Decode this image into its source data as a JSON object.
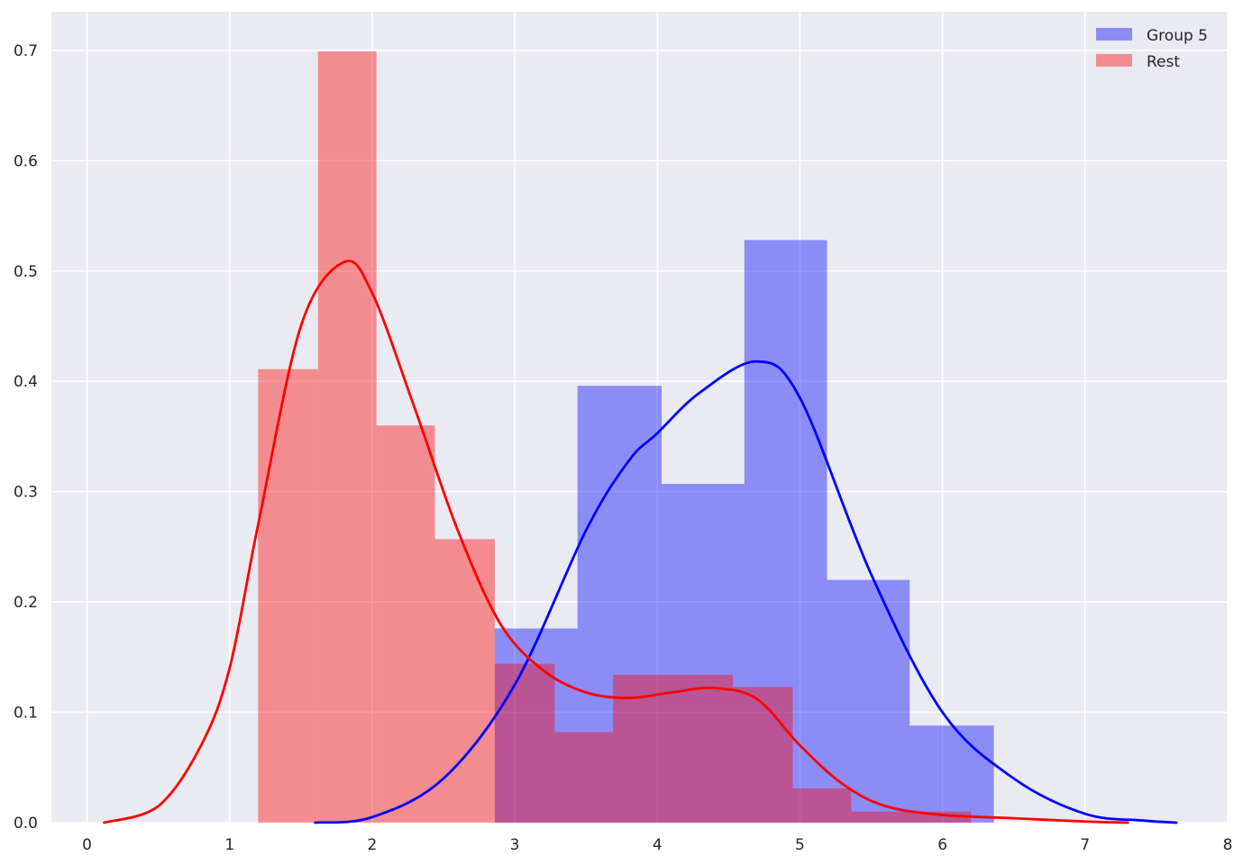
{
  "chart_data": {
    "type": "histogram",
    "xlim": [
      -0.25,
      8.0
    ],
    "ylim": [
      0,
      0.735
    ],
    "xticks": [
      0,
      1,
      2,
      3,
      4,
      5,
      6,
      7,
      8
    ],
    "yticks": [
      0.0,
      0.1,
      0.2,
      0.3,
      0.4,
      0.5,
      0.6,
      0.7
    ],
    "grid": true,
    "legend": {
      "placement": "top-right"
    },
    "series": [
      {
        "name": "Group 5",
        "color": "#0000ff",
        "bin_edges": [
          2.86,
          3.44,
          4.03,
          4.61,
          5.19,
          5.77,
          6.36
        ],
        "densities": [
          0.176,
          0.396,
          0.307,
          0.528,
          0.22,
          0.088
        ],
        "kde": {
          "x": [
            1.6,
            2.0,
            2.5,
            3.0,
            3.5,
            3.8,
            4.0,
            4.3,
            4.7,
            5.0,
            5.5,
            6.0,
            6.5,
            7.0,
            7.4,
            7.64
          ],
          "y": [
            0.0,
            0.005,
            0.04,
            0.125,
            0.265,
            0.328,
            0.353,
            0.39,
            0.418,
            0.385,
            0.225,
            0.1,
            0.04,
            0.008,
            0.002,
            0.0
          ]
        }
      },
      {
        "name": "Rest",
        "color": "#ff0000",
        "bin_edges": [
          1.2,
          1.62,
          2.03,
          2.44,
          2.86,
          3.28,
          3.69,
          4.11,
          4.53,
          4.95,
          5.36,
          5.78,
          6.2
        ],
        "densities": [
          0.411,
          0.699,
          0.36,
          0.257,
          0.144,
          0.082,
          0.134,
          0.134,
          0.123,
          0.031,
          0.01,
          0.01
        ],
        "kde": {
          "x": [
            0.12,
            0.5,
            0.8,
            1.0,
            1.2,
            1.5,
            1.8,
            2.0,
            2.3,
            2.6,
            2.9,
            3.2,
            3.5,
            3.8,
            4.1,
            4.4,
            4.7,
            5.0,
            5.3,
            5.6,
            6.0,
            6.5,
            7.0,
            7.3
          ],
          "y": [
            0.0,
            0.015,
            0.07,
            0.14,
            0.27,
            0.45,
            0.508,
            0.48,
            0.375,
            0.265,
            0.18,
            0.138,
            0.118,
            0.113,
            0.118,
            0.122,
            0.112,
            0.07,
            0.035,
            0.015,
            0.007,
            0.004,
            0.001,
            0.0
          ]
        }
      }
    ]
  }
}
